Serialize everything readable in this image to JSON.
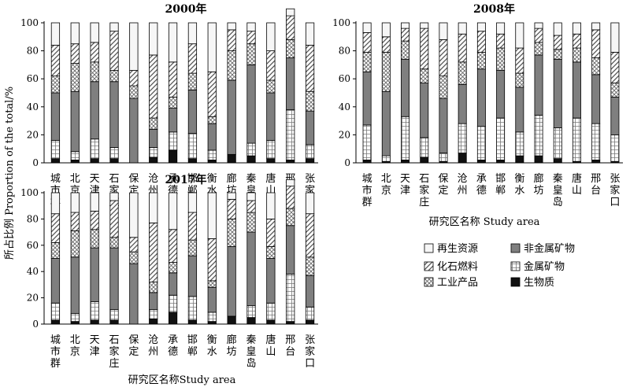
{
  "figure": {
    "ylabel": "所占比例 Proportion of the total/%",
    "xlabel_left": "研究区名称Study area",
    "xlabel_right": "研究区名称 Study area"
  },
  "legend": {
    "items": [
      {
        "key": "renewable",
        "label": "再生资源"
      },
      {
        "key": "nonmetal",
        "label": "非金属矿物"
      },
      {
        "key": "fossil",
        "label": "化石燃料"
      },
      {
        "key": "metal",
        "label": "金属矿物"
      },
      {
        "key": "industrial",
        "label": "工业产品"
      },
      {
        "key": "biomass",
        "label": "生物质"
      }
    ]
  },
  "chart_data": [
    {
      "type": "bar",
      "stacked": true,
      "title": "2000年",
      "categories": [
        "城市群",
        "北京",
        "天津",
        "石家庄",
        "保定",
        "沧州",
        "承德",
        "邯郸",
        "衡水",
        "廊坊",
        "秦皇岛",
        "唐山",
        "邢台",
        "张家口"
      ],
      "ylim": [
        0,
        100
      ],
      "yticks": [
        0,
        20,
        40,
        60,
        80,
        100
      ],
      "series": [
        {
          "name": "生物质",
          "values": [
            3,
            2,
            3,
            3,
            0,
            4,
            9,
            3,
            2,
            6,
            5,
            3,
            2,
            3
          ]
        },
        {
          "name": "金属矿物",
          "values": [
            13,
            6,
            14,
            8,
            0,
            7,
            13,
            18,
            7,
            0,
            9,
            13,
            36,
            10
          ]
        },
        {
          "name": "非金属矿物",
          "values": [
            34,
            43,
            41,
            47,
            46,
            13,
            17,
            31,
            19,
            53,
            56,
            34,
            37,
            24
          ]
        },
        {
          "name": "工业产品",
          "values": [
            12,
            20,
            14,
            8,
            9,
            8,
            8,
            12,
            5,
            21,
            15,
            9,
            13,
            14
          ]
        },
        {
          "name": "化石燃料",
          "values": [
            22,
            14,
            14,
            28,
            11,
            45,
            25,
            21,
            32,
            15,
            9,
            21,
            17,
            33
          ]
        },
        {
          "name": "再生资源",
          "values": [
            16,
            15,
            14,
            6,
            34,
            23,
            28,
            15,
            35,
            5,
            6,
            20,
            5,
            16
          ]
        }
      ]
    },
    {
      "type": "bar",
      "stacked": true,
      "title": "2008年",
      "categories": [
        "城市群",
        "北京",
        "天津",
        "石家庄",
        "保定",
        "沧州",
        "承德",
        "邯郸",
        "衡水",
        "廊坊",
        "秦皇岛",
        "唐山",
        "邢台",
        "张家口"
      ],
      "ylim": [
        0,
        100
      ],
      "yticks": [
        0,
        20,
        40,
        60,
        80,
        100
      ],
      "series": [
        {
          "name": "生物质",
          "values": [
            2,
            1,
            2,
            4,
            1,
            7,
            2,
            2,
            5,
            5,
            3,
            1,
            2,
            1
          ]
        },
        {
          "name": "金属矿物",
          "values": [
            25,
            4,
            31,
            14,
            6,
            21,
            24,
            30,
            17,
            29,
            22,
            31,
            26,
            19
          ]
        },
        {
          "name": "非金属矿物",
          "values": [
            38,
            46,
            41,
            39,
            39,
            28,
            41,
            34,
            32,
            43,
            49,
            40,
            35,
            27
          ]
        },
        {
          "name": "工业产品",
          "values": [
            14,
            28,
            13,
            10,
            16,
            16,
            12,
            16,
            10,
            9,
            7,
            10,
            12,
            10
          ]
        },
        {
          "name": "化石燃料",
          "values": [
            14,
            11,
            9,
            29,
            26,
            20,
            15,
            10,
            18,
            10,
            10,
            10,
            20,
            22
          ]
        },
        {
          "name": "再生资源",
          "values": [
            7,
            10,
            4,
            4,
            12,
            8,
            6,
            8,
            18,
            4,
            9,
            8,
            5,
            21
          ]
        }
      ]
    },
    {
      "type": "bar",
      "stacked": true,
      "title": "2017年",
      "categories": [
        "城市群",
        "北京",
        "天津",
        "石家庄",
        "保定",
        "沧州",
        "承德",
        "邯郸",
        "衡水",
        "廊坊",
        "秦皇岛",
        "唐山",
        "邢台",
        "张家口"
      ],
      "ylim": [
        0,
        100
      ],
      "yticks": [
        0,
        20,
        40,
        60,
        80,
        100
      ],
      "series": [
        {
          "name": "生物质",
          "values": [
            3,
            2,
            3,
            3,
            0,
            4,
            9,
            3,
            2,
            6,
            5,
            3,
            2,
            3
          ]
        },
        {
          "name": "金属矿物",
          "values": [
            13,
            6,
            14,
            8,
            0,
            7,
            13,
            18,
            7,
            0,
            9,
            13,
            36,
            10
          ]
        },
        {
          "name": "非金属矿物",
          "values": [
            34,
            43,
            41,
            47,
            46,
            13,
            17,
            31,
            19,
            53,
            56,
            34,
            37,
            24
          ]
        },
        {
          "name": "工业产品",
          "values": [
            12,
            20,
            14,
            8,
            9,
            8,
            8,
            12,
            5,
            21,
            15,
            9,
            13,
            14
          ]
        },
        {
          "name": "化石燃料",
          "values": [
            22,
            14,
            14,
            28,
            11,
            45,
            25,
            21,
            32,
            15,
            9,
            21,
            17,
            33
          ]
        },
        {
          "name": "再生资源",
          "values": [
            16,
            15,
            14,
            6,
            34,
            23,
            28,
            15,
            35,
            5,
            6,
            20,
            5,
            16
          ]
        }
      ]
    }
  ]
}
